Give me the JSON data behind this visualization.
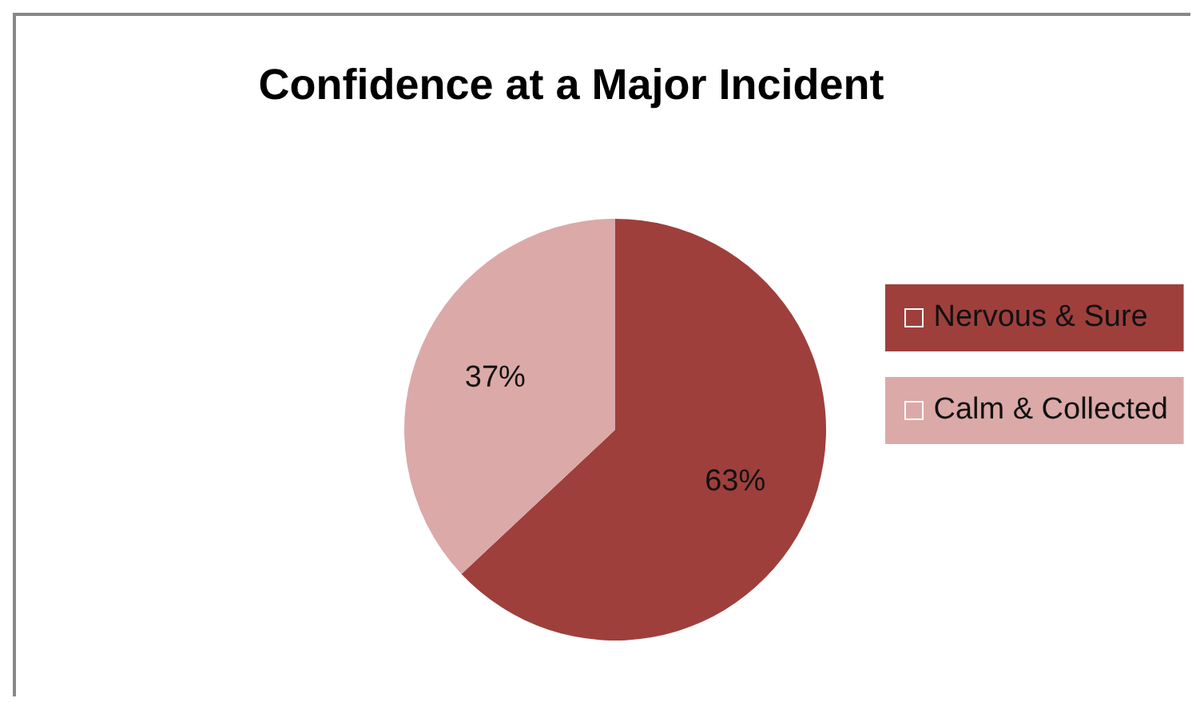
{
  "chart_data": {
    "type": "pie",
    "title": "Confidence at a Major Incident",
    "categories": [
      "Nervous & Sure",
      "Calm & Collected"
    ],
    "values": [
      63,
      37
    ],
    "colors": [
      "#9e3f3c",
      "#dba9a8"
    ],
    "value_labels": [
      "63%",
      "37%"
    ],
    "legend": "right"
  }
}
